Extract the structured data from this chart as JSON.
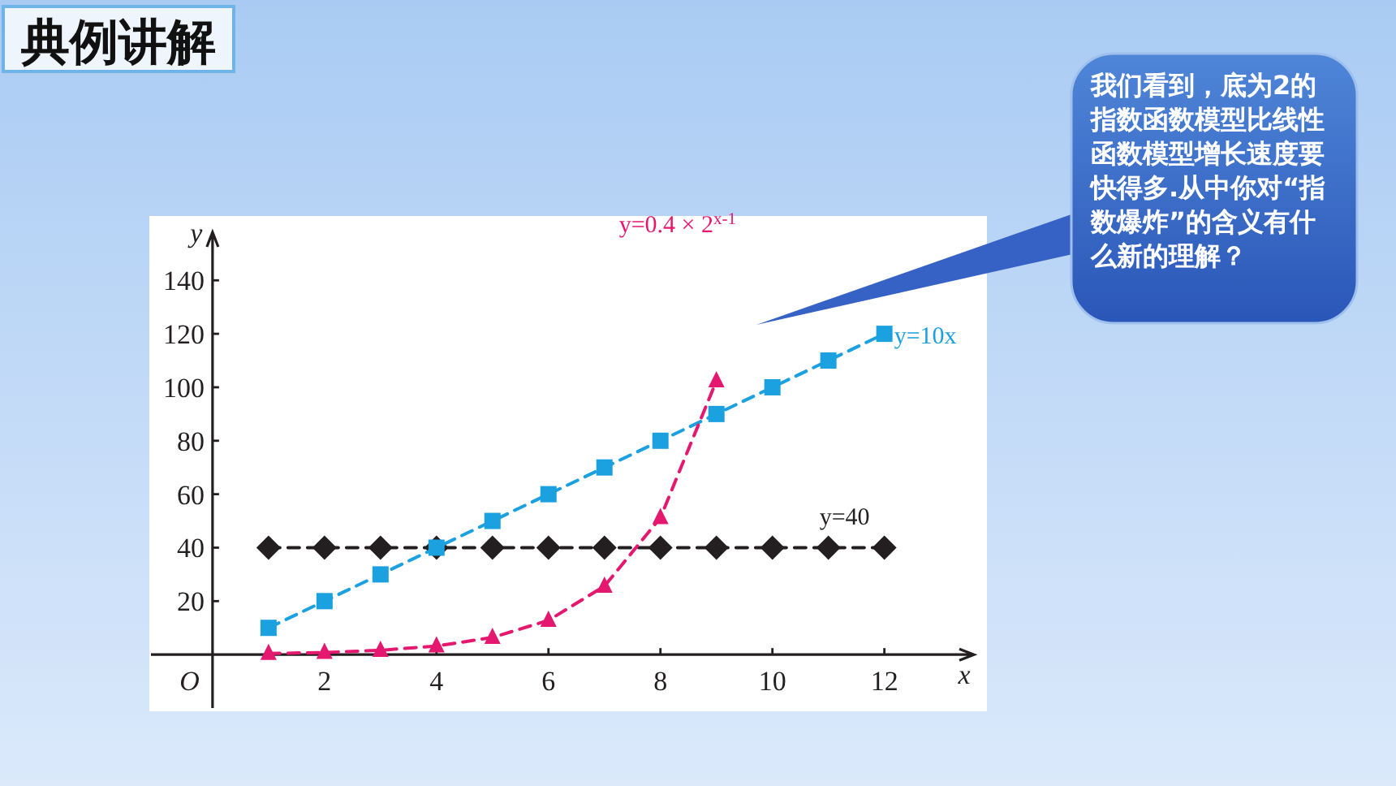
{
  "chart_data": {
    "type": "line",
    "title": "典例讲解",
    "annotations": [
      "我们看到，底为2的指数函数模型比线性函数模型增长速度要快得多.从中你对“指数爆炸”的含义有什么新的理解？",
      "O"
    ],
    "xlabel": "x",
    "ylabel": "y",
    "x": [
      1,
      2,
      3,
      4,
      5,
      6,
      7,
      8,
      9,
      10,
      11,
      12
    ],
    "series": [
      {
        "name": "y=40",
        "color": "#231f20",
        "marker": "diamond",
        "values": [
          40,
          40,
          40,
          40,
          40,
          40,
          40,
          40,
          40,
          40,
          40,
          40
        ]
      },
      {
        "name": "y=10x",
        "color": "#1ba0e0",
        "marker": "square",
        "values": [
          10,
          20,
          30,
          40,
          50,
          60,
          70,
          80,
          90,
          100,
          110,
          120
        ]
      },
      {
        "name": "y=0.4 × 2$^{x-1}$",
        "color": "#e5186f",
        "marker": "triangle",
        "x": [
          1,
          2,
          3,
          4,
          5,
          6,
          7,
          8,
          9
        ],
        "values": [
          0.4,
          0.8,
          1.6,
          3.2,
          6.4,
          12.8,
          25.6,
          51.2,
          102.4
        ]
      }
    ],
    "xlim": [
      -1.1,
      13.6
    ],
    "ylim": [
      -20,
      158
    ],
    "xticks": [
      2,
      4,
      6,
      8,
      10,
      12
    ],
    "yticks": [
      20,
      40,
      60,
      80,
      100,
      120,
      140
    ],
    "line_style": "dashed"
  }
}
